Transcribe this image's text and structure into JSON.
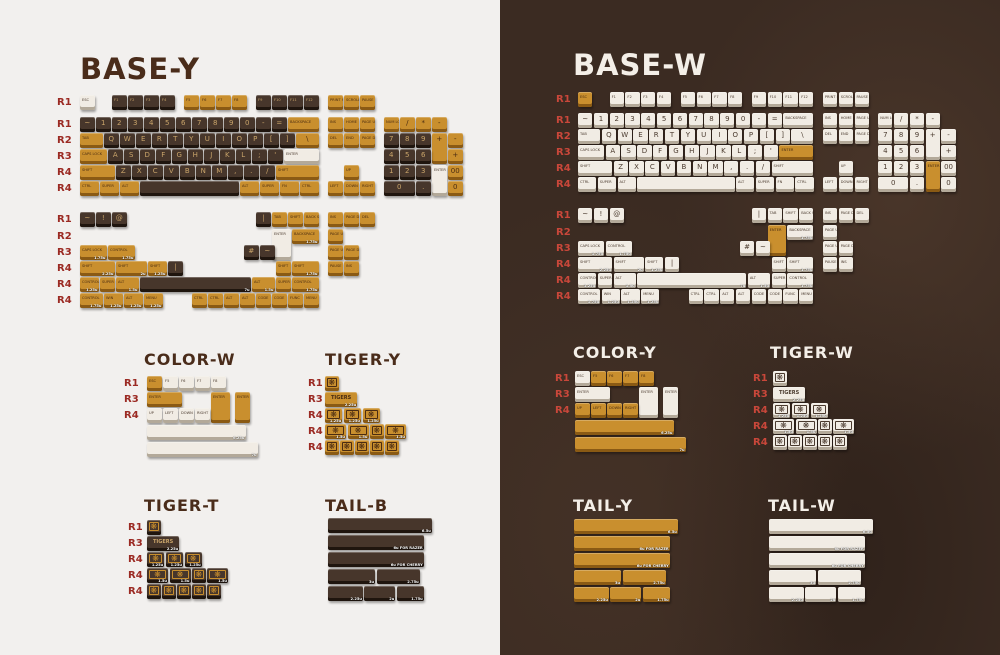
{
  "titles": {
    "base_y": "BASE-Y",
    "base_w": "BASE-W",
    "color_w": "COLOR-W",
    "tiger_y": "TIGER-Y",
    "tiger_t": "TIGER-T",
    "tail_b": "TAIL-B",
    "color_y": "COLOR-Y",
    "tiger_w": "TIGER-W",
    "tail_y": "TAIL-Y",
    "tail_w": "TAIL-W"
  },
  "colors": {
    "yellow": "#c98f2e",
    "dark": "#47362b",
    "white": "#f1ece4",
    "row_label": "#9b2a23",
    "left_bg": "#f2f0ee",
    "right_bg": "#3b2b22"
  },
  "blocks": {
    "base_y_main": {
      "row_labels": [
        "R1",
        "R1",
        "R2",
        "R3",
        "R4",
        "R4"
      ],
      "rows": [
        {
          "legends": [
            "ESC",
            "F1",
            "F2",
            "F3",
            "F4",
            "F5",
            "F6",
            "F7",
            "F8",
            "F9",
            "F10",
            "F11",
            "F12",
            "PRINT SCREEN",
            "SCROLL LOCK",
            "PAUSE"
          ],
          "colors": "WDDDDYYYYDDDDYYY"
        },
        {
          "legends": [
            "~",
            "1",
            "2",
            "3",
            "4",
            "5",
            "6",
            "7",
            "8",
            "9",
            "0",
            "-",
            "=",
            "BACKSPACE",
            "INS",
            "HOME",
            "PAGE UP",
            "NUM LOCK",
            "/",
            "*",
            "-"
          ],
          "colors": "DDDDDDDDDDDDDYYYYYYYY"
        },
        {
          "legends": [
            "TAB",
            "Q",
            "W",
            "E",
            "R",
            "T",
            "Y",
            "U",
            "I",
            "O",
            "P",
            "[",
            "]",
            "\\",
            "DEL",
            "END",
            "PAGE DOWN",
            "7",
            "8",
            "9",
            "+",
            "-"
          ],
          "colors": "YDDDDDDDDDDDDYYYYDDDYY"
        },
        {
          "legends": [
            "CAPS LOCK",
            "A",
            "S",
            "D",
            "F",
            "G",
            "H",
            "J",
            "K",
            "L",
            ";",
            "'",
            "ENTER",
            "4",
            "5",
            "6",
            "+"
          ],
          "colors": "YDDDDDDDDDDDWDDDY"
        },
        {
          "legends": [
            "SHIFT",
            "Z",
            "X",
            "C",
            "V",
            "B",
            "N",
            "M",
            ",",
            ".",
            "/",
            "SHIFT",
            "UP",
            "1",
            "2",
            "3",
            "ENTER",
            "00"
          ],
          "colors": "YDDDDDDDDDDYYDDDWY"
        },
        {
          "legends": [
            "CTRL",
            "SUPER",
            "ALT",
            "",
            "ALT",
            "SUPER",
            "FN",
            "CTRL",
            "LEFT",
            "DOWN",
            "RIGHT",
            "0",
            ".",
            "0"
          ],
          "colors": "YYYDYYYYYYYDDY"
        }
      ]
    },
    "base_y_extra": {
      "row_labels": [
        "R1",
        "R2",
        "R3",
        "R4",
        "R4",
        "R4"
      ],
      "rows": [
        {
          "legends": [
            "~",
            "!",
            "@",
            "|",
            "TAB",
            "SHIFT",
            "BACK SPACE",
            "INS",
            "PAGE DOWN",
            "DEL"
          ],
          "colors": "DDDDYYYYYY"
        },
        {
          "legends": [
            "ENTER",
            "BACKSPACE",
            "PAGE UP"
          ],
          "colors": "WYY",
          "sizes": {
            "1": "1.75u"
          }
        },
        {
          "legends": [
            "CAPS LOCK",
            "CONTROL",
            "#",
            "~",
            "PAGE UP",
            "PAGE DOWN"
          ],
          "colors": "YYDDYY",
          "sizes": {
            "0": "1.75u",
            "1": "1.75u"
          }
        },
        {
          "legends": [
            "SHIFT",
            "SHIFT",
            "SHIFT",
            "|",
            "SHIFT",
            "SHIFT",
            "PAUSE BREAK",
            "INS"
          ],
          "colors": "YYYDYYYY",
          "sizes": {
            "0": "2.25u",
            "1": "2u",
            "2": "1.25u",
            "5": "1.75u"
          }
        },
        {
          "legends": [
            "CONTROL",
            "SUPER",
            "ALT",
            "",
            "ALT",
            "SUPER",
            "CONTROL"
          ],
          "colors": "YYYDYYY",
          "sizes": {
            "0": "1.25u",
            "2": "1.5u",
            "3": "7u",
            "4": "1.5u",
            "6": "1.75u"
          }
        },
        {
          "legends": [
            "CONTROL",
            "WIN",
            "ALT",
            "MENU",
            "CTRL",
            "CTRL",
            "ALT",
            "ALT",
            "CODE",
            "CODE",
            "FUNC",
            "MENU"
          ],
          "colors": "YYYYYYYYYYYY",
          "sizes": {
            "0": "1.75u",
            "1": "1.25u",
            "2": "1.25u",
            "3": "1.25u"
          }
        }
      ]
    },
    "base_w_main": {
      "row_labels": [
        "R1",
        "R1",
        "R2",
        "R3",
        "R4",
        "R4"
      ],
      "rows": [
        {
          "legends": [
            "ESC",
            "F1",
            "F2",
            "F3",
            "F4",
            "F5",
            "F6",
            "F7",
            "F8",
            "F9",
            "F10",
            "F11",
            "F12",
            "PRINT SCREEN",
            "SCROLL LOCK",
            "PAUSE"
          ],
          "colors": "YWWWWWWWWWWWWWWW"
        },
        {
          "legends": [
            "~",
            "1",
            "2",
            "3",
            "4",
            "5",
            "6",
            "7",
            "8",
            "9",
            "0",
            "-",
            "=",
            "BACKSPACE",
            "INS",
            "HOME",
            "PAGE UP",
            "NUM LOCK",
            "/",
            "*",
            "-"
          ],
          "colors": "WWWWWWWWWWWWWWWWWWWWW"
        },
        {
          "legends": [
            "TAB",
            "Q",
            "W",
            "E",
            "R",
            "T",
            "Y",
            "U",
            "I",
            "O",
            "P",
            "[",
            "]",
            "\\",
            "DEL",
            "END",
            "PAGE DOWN",
            "7",
            "8",
            "9",
            "+",
            "-"
          ],
          "colors": "WWWWWWWWWWWWWWWWWWWWWW"
        },
        {
          "legends": [
            "CAPS LOCK",
            "A",
            "S",
            "D",
            "F",
            "G",
            "H",
            "J",
            "K",
            "L",
            ";",
            "'",
            "ENTER",
            "4",
            "5",
            "6",
            "+"
          ],
          "colors": "WWWWWWWWWWWWYWWWW"
        },
        {
          "legends": [
            "SHIFT",
            "Z",
            "X",
            "C",
            "V",
            "B",
            "N",
            "M",
            ",",
            ".",
            "/",
            "SHIFT",
            "UP",
            "1",
            "2",
            "3",
            "ENTER",
            "00"
          ],
          "colors": "WWWWWWWWWWWWWWWWYW"
        },
        {
          "legends": [
            "CTRL",
            "SUPER",
            "ALT",
            "",
            "ALT",
            "SUPER",
            "FN",
            "CTRL",
            "LEFT",
            "DOWN",
            "RIGHT",
            "0",
            ".",
            "0"
          ],
          "colors": "WWWWWWWWWWWWWW"
        }
      ]
    },
    "base_w_extra": {
      "row_labels": [
        "R1",
        "R2",
        "R3",
        "R4",
        "R4",
        "R4"
      ],
      "rows": [
        {
          "legends": [
            "~",
            "!",
            "@",
            "|",
            "TAB",
            "SHIFT",
            "BACK SPACE",
            "INS",
            "PAGE DOWN",
            "DEL"
          ],
          "colors": "WWWWWWWWWW"
        },
        {
          "legends": [
            "ENTER",
            "BACKSPACE",
            "PAGE UP"
          ],
          "colors": "YWW",
          "sizes": {
            "1": "1.75u"
          }
        },
        {
          "legends": [
            "CAPS LOCK",
            "CONTROL",
            "#",
            "~",
            "PAGE UP",
            "PAGE DOWN"
          ],
          "colors": "WWWWWW",
          "sizes": {
            "0": "1.75u",
            "1": "1.75u"
          }
        },
        {
          "legends": [
            "SHIFT",
            "SHIFT",
            "SHIFT",
            "|",
            "SHIFT",
            "SHIFT",
            "PAUSE BREAK",
            "INS"
          ],
          "colors": "WWWWWWWW",
          "sizes": {
            "0": "2.25u",
            "1": "2u",
            "2": "1.25u",
            "5": "1.75u"
          }
        },
        {
          "legends": [
            "CONTROL",
            "SUPER",
            "ALT",
            "",
            "ALT",
            "SUPER",
            "CONTROL"
          ],
          "colors": "WWWWWWW",
          "sizes": {
            "0": "1.25u",
            "2": "1.5u",
            "3": "7u",
            "4": "1.5u",
            "6": "1.75u"
          }
        },
        {
          "legends": [
            "CONTROL",
            "WIN",
            "ALT",
            "MENU",
            "CTRL",
            "CTRL",
            "ALT",
            "ALT",
            "CODE",
            "CODE",
            "FUNC",
            "MENU"
          ],
          "colors": "WWWWWWWWWWWW",
          "sizes": {
            "0": "1.75u",
            "1": "1.25u",
            "2": "1.25u",
            "3": "1.25u"
          }
        }
      ]
    },
    "color_w": {
      "row_labels": [
        "R1",
        "R3",
        "R4"
      ],
      "rows": [
        {
          "legends": [
            "ESC",
            "F5",
            "F6",
            "F7",
            "F8"
          ],
          "colors": "YWWWW"
        },
        {
          "legends": [
            "ENTER",
            "ENTER",
            "ENTER"
          ],
          "colors": "YYY"
        },
        {
          "legends": [
            "UP",
            "LEFT",
            "DOWN",
            "RIGHT"
          ],
          "colors": "WWWW"
        },
        {
          "legends": [
            ""
          ],
          "colors": "W",
          "sizes": {
            "0": "6.25u"
          }
        },
        {
          "legends": [
            ""
          ],
          "colors": "W",
          "sizes": {
            "0": "7u"
          }
        }
      ]
    },
    "color_y": {
      "row_labels": [
        "R1",
        "R3",
        "R4"
      ],
      "rows": [
        {
          "legends": [
            "ESC",
            "F5",
            "F6",
            "F7",
            "F8"
          ],
          "colors": "WYYYY"
        },
        {
          "legends": [
            "ENTER",
            "ENTER",
            "ENTER"
          ],
          "colors": "WWW"
        },
        {
          "legends": [
            "UP",
            "LEFT",
            "DOWN",
            "RIGHT"
          ],
          "colors": "YYYY"
        },
        {
          "legends": [
            ""
          ],
          "colors": "Y",
          "sizes": {
            "0": "6.25u"
          }
        },
        {
          "legends": [
            ""
          ],
          "colors": "Y",
          "sizes": {
            "0": "7u"
          }
        }
      ]
    },
    "tiger_y": {
      "icon": "tiger-icon",
      "row_labels": [
        "R1",
        "R3",
        "R4",
        "R4",
        "R4"
      ],
      "rows": [
        {
          "legends": [
            ""
          ],
          "colors": "Y"
        },
        {
          "legends": [
            "TIGERS"
          ],
          "colors": "Y",
          "sizes": {
            "0": "2.25u"
          }
        },
        {
          "legends": [
            "",
            "",
            ""
          ],
          "colors": "YYY",
          "sizes": {
            "0": "1.25u",
            "1": "1.25u",
            "2": "1.25u"
          }
        },
        {
          "legends": [
            "",
            "",
            "",
            ""
          ],
          "colors": "YYYY",
          "sizes": {
            "0": "1.5u",
            "1": "1.5u",
            "3": "1.5u"
          }
        },
        {
          "legends": [
            "",
            "",
            "",
            "",
            ""
          ],
          "colors": "YYYYY"
        }
      ]
    },
    "tiger_t": {
      "icon": "tiger-icon",
      "row_labels": [
        "R1",
        "R3",
        "R4",
        "R4",
        "R4"
      ],
      "rows": [
        {
          "legends": [
            ""
          ],
          "colors": "D"
        },
        {
          "legends": [
            "TIGERS"
          ],
          "colors": "D",
          "sizes": {
            "0": "2.25u"
          }
        },
        {
          "legends": [
            "",
            "",
            ""
          ],
          "colors": "DDD",
          "sizes": {
            "0": "1.25u",
            "1": "1.25u",
            "2": "1.25u"
          }
        },
        {
          "legends": [
            "",
            "",
            "",
            ""
          ],
          "colors": "DDDD",
          "sizes": {
            "0": "1.5u",
            "1": "1.5u",
            "3": "1.5u"
          }
        },
        {
          "legends": [
            "",
            "",
            "",
            "",
            ""
          ],
          "colors": "DDDDD"
        }
      ]
    },
    "tiger_w": {
      "icon": "tiger-icon",
      "row_labels": [
        "R1",
        "R3",
        "R4",
        "R4",
        "R4"
      ],
      "rows": [
        {
          "legends": [
            ""
          ],
          "colors": "W"
        },
        {
          "legends": [
            "TIGERS"
          ],
          "colors": "W",
          "sizes": {
            "0": "2.25u"
          }
        },
        {
          "legends": [
            "",
            "",
            ""
          ],
          "colors": "WWW",
          "sizes": {
            "0": "1.25u",
            "1": "1.25u",
            "2": "1.25u"
          }
        },
        {
          "legends": [
            "",
            "",
            "",
            ""
          ],
          "colors": "WWWW",
          "sizes": {
            "0": "1.5u",
            "1": "1.5u",
            "3": "1.5u"
          }
        },
        {
          "legends": [
            "",
            "",
            "",
            "",
            ""
          ],
          "colors": "WWWWW"
        }
      ]
    },
    "tail_b": {
      "rows": [
        {
          "legends": [
            ""
          ],
          "colors": "D",
          "sizes": {
            "0": "6.5u"
          }
        },
        {
          "legends": [
            ""
          ],
          "colors": "D",
          "sizes": {
            "0": "6u FOR RAZER"
          }
        },
        {
          "legends": [
            ""
          ],
          "colors": "D",
          "sizes": {
            "0": "6u FOR CHERRY"
          }
        },
        {
          "legends": [
            "",
            ""
          ],
          "colors": "DD",
          "sizes": {
            "0": "3u",
            "1": "2.75u"
          }
        },
        {
          "legends": [
            "",
            "",
            ""
          ],
          "colors": "DDD",
          "sizes": {
            "0": "2.25u",
            "1": "2u",
            "2": "1.75u"
          }
        }
      ]
    },
    "tail_y": {
      "rows": [
        {
          "legends": [
            ""
          ],
          "colors": "Y",
          "sizes": {
            "0": "6.5u"
          }
        },
        {
          "legends": [
            ""
          ],
          "colors": "Y",
          "sizes": {
            "0": "6u FOR RAZER"
          }
        },
        {
          "legends": [
            ""
          ],
          "colors": "Y",
          "sizes": {
            "0": "6u FOR CHERRY"
          }
        },
        {
          "legends": [
            "",
            ""
          ],
          "colors": "YY",
          "sizes": {
            "0": "3u",
            "1": "2.75u"
          }
        },
        {
          "legends": [
            "",
            "",
            ""
          ],
          "colors": "YYY",
          "sizes": {
            "0": "2.25u",
            "1": "2u",
            "2": "1.75u"
          }
        }
      ]
    },
    "tail_w": {
      "rows": [
        {
          "legends": [
            ""
          ],
          "colors": "W",
          "sizes": {
            "0": "6.5u"
          }
        },
        {
          "legends": [
            ""
          ],
          "colors": "W",
          "sizes": {
            "0": "6u FOR RAZER"
          }
        },
        {
          "legends": [
            ""
          ],
          "colors": "W",
          "sizes": {
            "0": "6u FOR CHERRY"
          }
        },
        {
          "legends": [
            "",
            ""
          ],
          "colors": "WW",
          "sizes": {
            "0": "3u",
            "1": "2.75u"
          }
        },
        {
          "legends": [
            "",
            "",
            ""
          ],
          "colors": "WWW",
          "sizes": {
            "0": "2.25u",
            "1": "2u",
            "2": "1.75u"
          }
        }
      ]
    }
  }
}
